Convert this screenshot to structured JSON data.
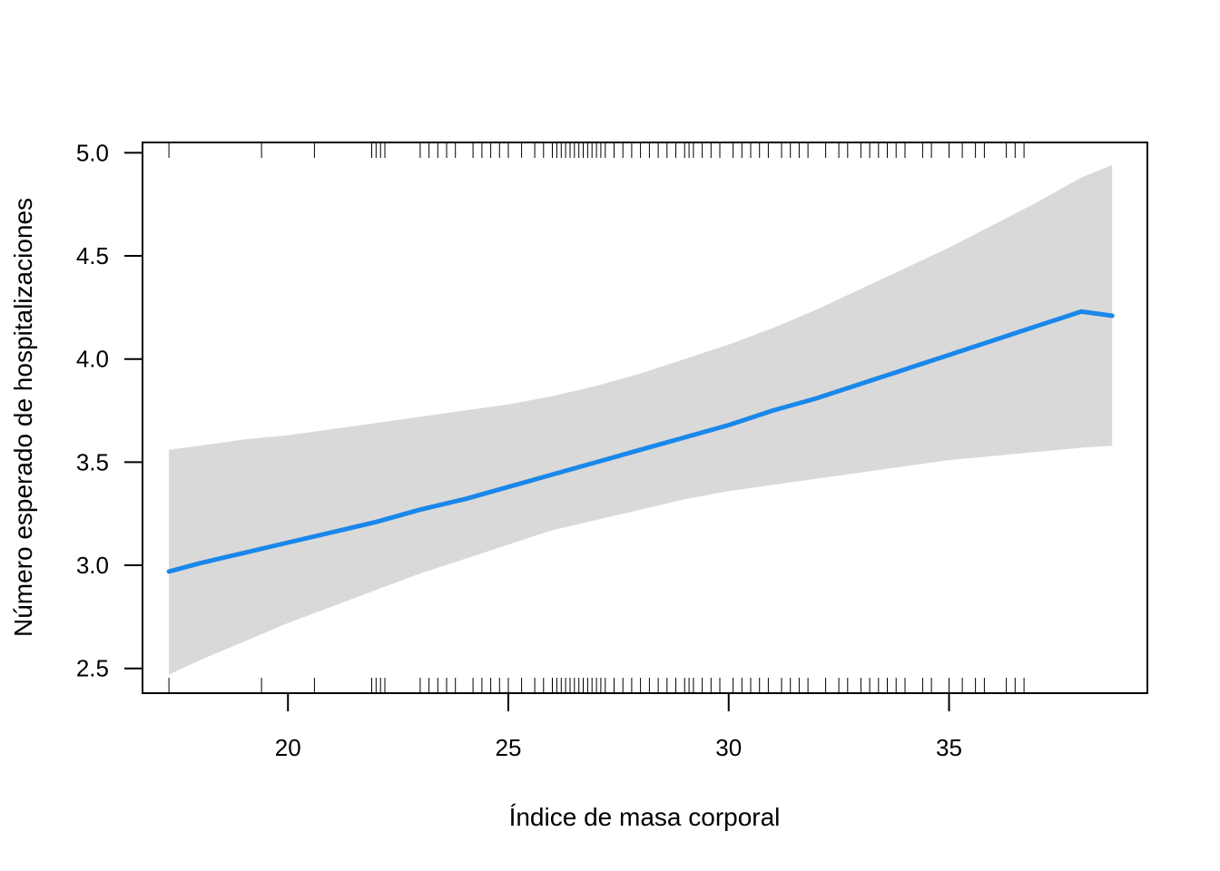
{
  "chart_data": {
    "type": "line",
    "title": "",
    "xlabel": "Índice de masa corporal",
    "ylabel": "Número esperado de hospitalizaciones",
    "xlim": [
      16.7,
      39.5
    ],
    "ylim": [
      2.38,
      5.05
    ],
    "x_ticks": [
      20,
      25,
      30,
      35
    ],
    "x_tick_labels": [
      "20",
      "25",
      "30",
      "35"
    ],
    "y_ticks": [
      2.5,
      3.0,
      3.5,
      4.0,
      4.5,
      5.0
    ],
    "y_tick_labels": [
      "2.5",
      "3.0",
      "3.5",
      "4.0",
      "4.5",
      "5.0"
    ],
    "grid": false,
    "colors": {
      "line": "#1a87ea",
      "band": "#d9d9d9",
      "axis": "#000000"
    },
    "series": [
      {
        "x": [
          17.3,
          18,
          19,
          20,
          21,
          22,
          23,
          24,
          25,
          26,
          27,
          28,
          29,
          30,
          31,
          32,
          33,
          34,
          35,
          36,
          37,
          38,
          38.7
        ],
        "fit": [
          2.97,
          3.01,
          3.06,
          3.11,
          3.16,
          3.21,
          3.27,
          3.32,
          3.38,
          3.44,
          3.5,
          3.56,
          3.62,
          3.68,
          3.75,
          3.81,
          3.88,
          3.95,
          4.02,
          4.09,
          4.16,
          4.23,
          4.21
        ],
        "lower": [
          2.47,
          2.54,
          2.63,
          2.72,
          2.8,
          2.88,
          2.96,
          3.03,
          3.1,
          3.17,
          3.22,
          3.27,
          3.32,
          3.36,
          3.39,
          3.42,
          3.45,
          3.48,
          3.51,
          3.53,
          3.55,
          3.57,
          3.58
        ],
        "upper": [
          3.56,
          3.58,
          3.61,
          3.63,
          3.66,
          3.69,
          3.72,
          3.75,
          3.78,
          3.82,
          3.87,
          3.93,
          4.0,
          4.07,
          4.15,
          4.24,
          4.34,
          4.44,
          4.54,
          4.65,
          4.76,
          4.88,
          4.94
        ]
      }
    ],
    "rug_top": [
      17.3,
      19.4,
      20.6,
      21.9,
      22.0,
      22.1,
      22.2,
      23.0,
      23.2,
      23.4,
      23.6,
      23.8,
      24.2,
      24.4,
      24.6,
      24.8,
      25.0,
      25.3,
      25.6,
      25.8,
      26.0,
      26.1,
      26.2,
      26.3,
      26.4,
      26.5,
      26.6,
      26.7,
      26.8,
      26.9,
      27.0,
      27.1,
      27.2,
      27.4,
      27.6,
      27.8,
      28.0,
      28.2,
      28.4,
      28.6,
      28.8,
      29.0,
      29.1,
      29.2,
      29.4,
      29.6,
      29.8,
      30.1,
      30.3,
      30.5,
      30.7,
      30.9,
      31.2,
      31.4,
      31.6,
      31.8,
      32.2,
      32.5,
      32.7,
      33.0,
      33.2,
      33.4,
      33.6,
      33.8,
      34.0,
      34.4,
      34.6,
      35.0,
      35.3,
      35.6,
      35.8,
      36.3,
      36.5,
      36.7
    ]
  }
}
